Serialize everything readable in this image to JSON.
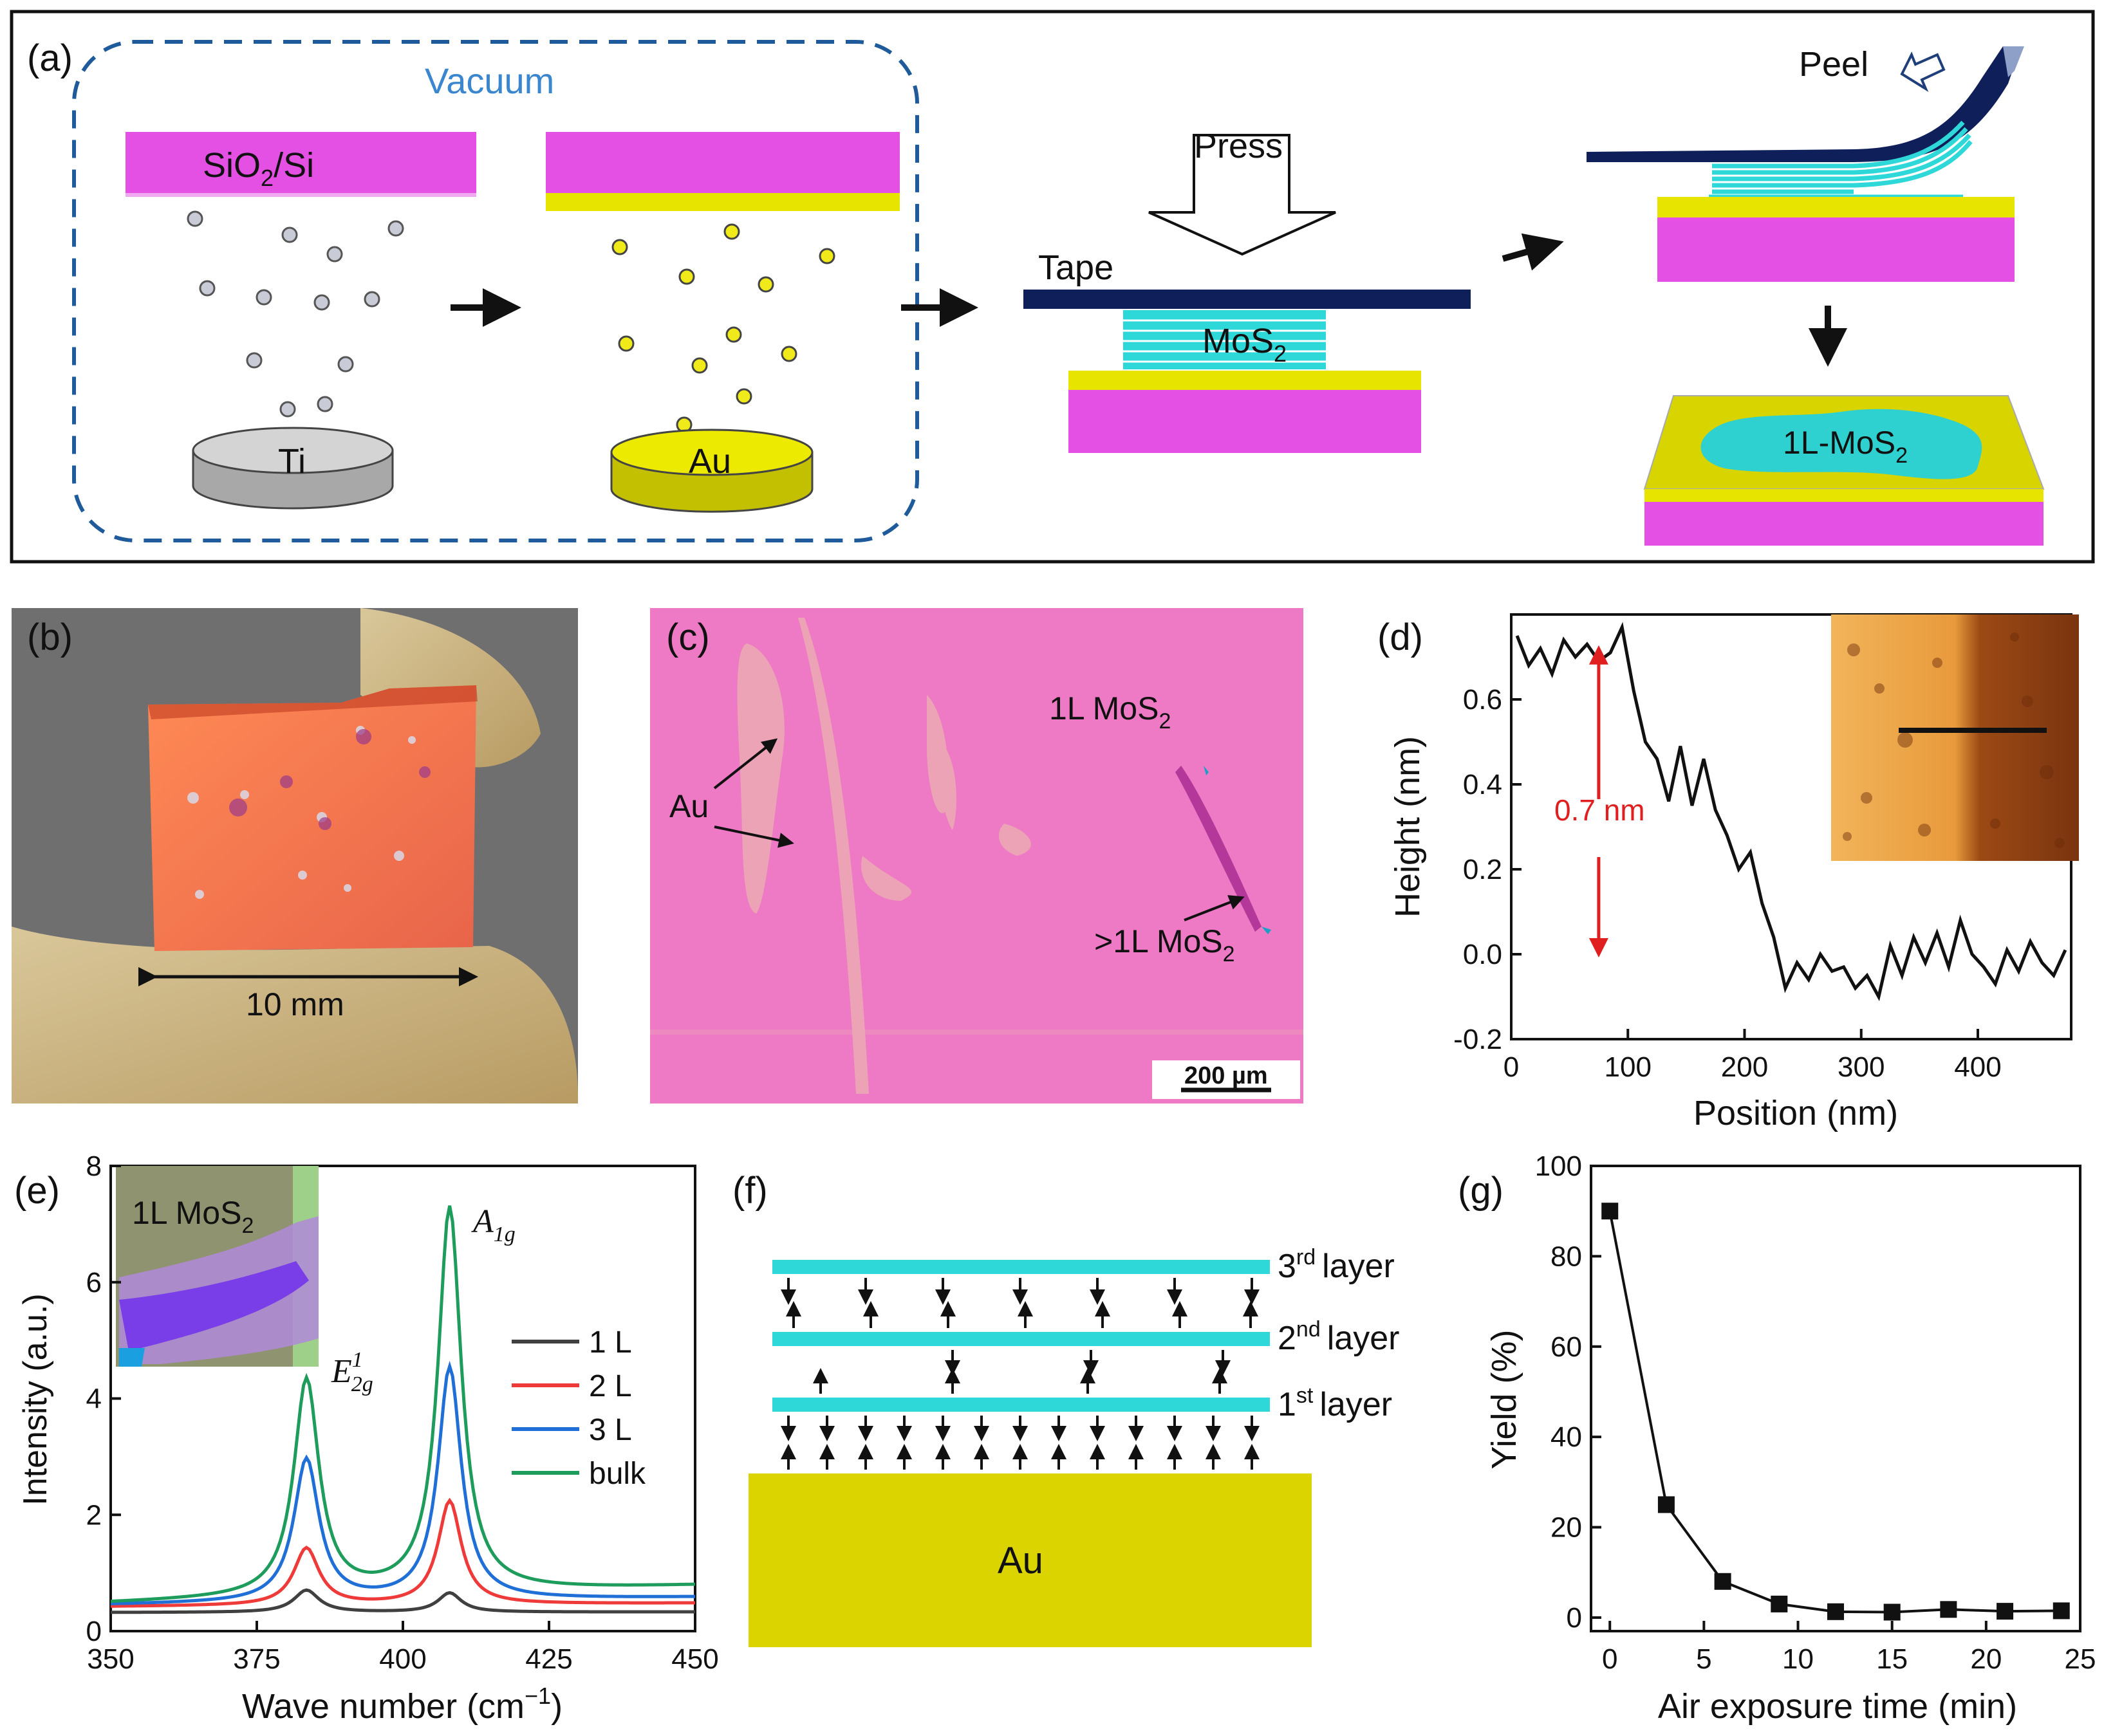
{
  "panel_a": {
    "label": "(a)",
    "vacuum": "Vacuum",
    "substrate": "SiO",
    "substrate_sub": "2",
    "substrate_rest": "/Si",
    "ti": "Ti",
    "au": "Au",
    "press": "Press",
    "tape": "Tape",
    "mos2": "MoS",
    "mos2_sub": "2",
    "peel": "Peel",
    "mono": "1L-MoS",
    "mono_sub": "2"
  },
  "panel_b": {
    "label": "(b)",
    "scale": "10 mm"
  },
  "panel_c": {
    "label": "(c)",
    "mono": "1L MoS",
    "mono_sub": "2",
    "au": "Au",
    "multi": ">1L MoS",
    "multi_sub": "2",
    "scalebar": "200 µm"
  },
  "panel_d": {
    "label": "(d)",
    "step": "0.7 nm",
    "chart_data": {
      "type": "line",
      "xlabel": "Position (nm)",
      "ylabel": "Height (nm)",
      "xlim": [
        0,
        480
      ],
      "ylim": [
        -0.2,
        0.8
      ],
      "xticks": [
        0,
        100,
        200,
        300,
        400
      ],
      "yticks": [
        -0.2,
        0.0,
        0.2,
        0.4,
        0.6
      ],
      "x": [
        0,
        10,
        20,
        30,
        40,
        50,
        60,
        70,
        80,
        90,
        100,
        110,
        120,
        130,
        140,
        150,
        160,
        170,
        180,
        190,
        200,
        210,
        220,
        230,
        240,
        250,
        260,
        270,
        280,
        290,
        300,
        310,
        320,
        330,
        340,
        350,
        360,
        370,
        380,
        390,
        400,
        410,
        420,
        430,
        440,
        450,
        460,
        470
      ],
      "y": [
        0.75,
        0.68,
        0.72,
        0.66,
        0.74,
        0.7,
        0.73,
        0.69,
        0.71,
        0.77,
        0.62,
        0.5,
        0.46,
        0.36,
        0.49,
        0.35,
        0.46,
        0.34,
        0.28,
        0.2,
        0.24,
        0.12,
        0.04,
        -0.08,
        -0.02,
        -0.06,
        0.0,
        -0.04,
        -0.03,
        -0.08,
        -0.05,
        -0.1,
        0.02,
        -0.05,
        0.04,
        -0.02,
        0.05,
        -0.03,
        0.08,
        0.0,
        -0.03,
        -0.07,
        0.01,
        -0.04,
        0.03,
        -0.02,
        -0.05,
        0.01
      ]
    }
  },
  "panel_e": {
    "label": "(e)",
    "inset": "1L MoS",
    "inset_sub": "2",
    "peak1": "E",
    "peak1_sup": "1",
    "peak1_sub": "2g",
    "peak2": "A",
    "peak2_sub": "1g",
    "chart_data": {
      "type": "line",
      "xlabel": "Wave number (cm",
      "xlabel_sup": "−1",
      "xlabel_end": ")",
      "ylabel": "Intensity (a.u.)",
      "xlim": [
        350,
        450
      ],
      "ylim": [
        0,
        8
      ],
      "xticks": [
        350,
        375,
        400,
        425,
        450
      ],
      "yticks": [
        0,
        2,
        4,
        6,
        8
      ],
      "series": [
        {
          "name": "1 L",
          "color": "#404040",
          "baseline": 0.32,
          "peakE": 0.7,
          "peakA": 0.65,
          "baseline_end": 0.33
        },
        {
          "name": "2 L",
          "color": "#ef3a3a",
          "baseline": 0.42,
          "peakE": 1.4,
          "peakA": 2.2,
          "baseline_end": 0.48
        },
        {
          "name": "3 L",
          "color": "#1f6fd6",
          "baseline": 0.45,
          "peakE": 2.9,
          "peakA": 4.45,
          "baseline_end": 0.58
        },
        {
          "name": "bulk",
          "color": "#1e9c5c",
          "baseline": 0.48,
          "peakE": 4.2,
          "peakA": 7.1,
          "baseline_end": 0.78
        }
      ]
    }
  },
  "panel_f": {
    "label": "(f)",
    "layer3": "3",
    "layer3_sup": "rd",
    "layer2": "2",
    "layer2_sup": "nd",
    "layer1": "1",
    "layer1_sup": "st",
    "layer_word": "layer",
    "au": "Au"
  },
  "panel_g": {
    "label": "(g)",
    "chart_data": {
      "type": "line",
      "xlabel": "Air exposure time (min)",
      "ylabel": "Yield (%)",
      "xlim": [
        -1,
        25
      ],
      "ylim": [
        -3,
        100
      ],
      "xticks": [
        0,
        5,
        10,
        15,
        20,
        25
      ],
      "yticks": [
        0,
        20,
        40,
        60,
        80,
        100
      ],
      "x": [
        0,
        3,
        6,
        9,
        12,
        15,
        18,
        21,
        24
      ],
      "y": [
        90,
        25,
        8,
        3,
        1.3,
        1.2,
        1.8,
        1.4,
        1.5
      ]
    }
  }
}
